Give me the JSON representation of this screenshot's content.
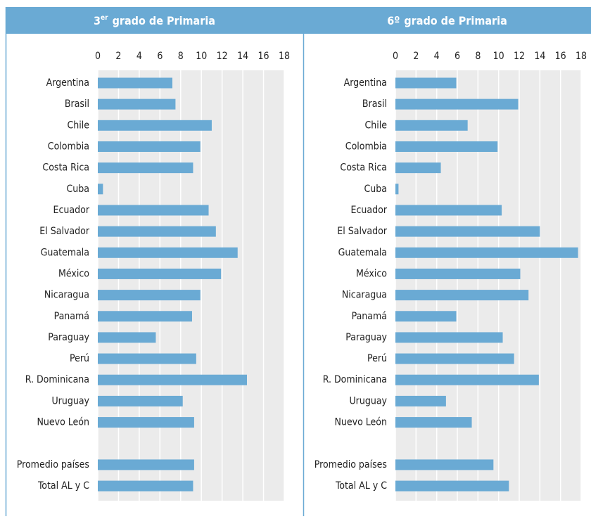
{
  "chart_data": [
    {
      "type": "bar",
      "orientation": "horizontal",
      "title": {
        "number": "3",
        "superscript": "er",
        "text": "grado de Primaria"
      },
      "categories": [
        "Argentina",
        "Brasil",
        "Chile",
        "Colombia",
        "Costa Rica",
        "Cuba",
        "Ecuador",
        "El Salvador",
        "Guatemala",
        "México",
        "Nicaragua",
        "Panamá",
        "Paraguay",
        "Perú",
        "R. Dominicana",
        "Uruguay",
        "Nuevo León",
        null,
        "Promedio países",
        "Total AL y C"
      ],
      "values": [
        7.2,
        7.5,
        11.0,
        9.9,
        9.2,
        0.5,
        10.7,
        11.4,
        13.5,
        11.9,
        9.9,
        9.1,
        5.6,
        9.5,
        14.4,
        8.2,
        9.3,
        null,
        9.3,
        9.2
      ],
      "color": "#6aaad4",
      "xlim": [
        0,
        18
      ],
      "xticks": [
        0,
        2,
        4,
        6,
        8,
        10,
        12,
        14,
        16,
        18
      ],
      "grid": true
    },
    {
      "type": "bar",
      "orientation": "horizontal",
      "title": {
        "number": "6º",
        "text": "grado de Primaria"
      },
      "categories": [
        "Argentina",
        "Brasil",
        "Chile",
        "Colombia",
        "Costa Rica",
        "Cuba",
        "Ecuador",
        "El Salvador",
        "Guatemala",
        "México",
        "Nicaragua",
        "Panamá",
        "Paraguay",
        "Perú",
        "R. Dominicana",
        "Uruguay",
        "Nuevo León",
        null,
        "Promedio países",
        "Total AL y C"
      ],
      "values": [
        5.9,
        11.9,
        7.0,
        9.9,
        4.4,
        0.3,
        10.3,
        14.0,
        17.7,
        12.1,
        12.9,
        5.9,
        10.4,
        11.5,
        13.9,
        4.9,
        7.4,
        null,
        9.5,
        11.0
      ],
      "color": "#6aaad4",
      "xlim": [
        0,
        18
      ],
      "xticks": [
        0,
        2,
        4,
        6,
        8,
        10,
        12,
        14,
        16,
        18
      ],
      "grid": true
    }
  ]
}
